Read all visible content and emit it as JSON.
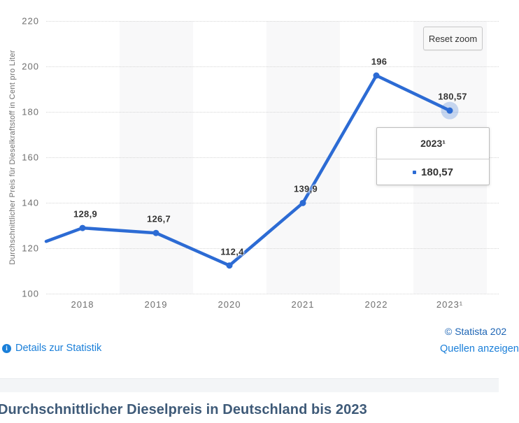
{
  "chart": {
    "reset_zoom_label": "Reset zoom",
    "y_ticks": [
      220,
      200,
      180,
      160,
      140,
      120,
      100
    ],
    "tooltip": {
      "header": "2023¹",
      "value": "180,57"
    },
    "colors": {
      "line": "#2c6bd4",
      "halo": "rgba(44,107,212,0.25)",
      "band": "#f8f8f9",
      "grid": "#d6d6d6",
      "data_label": "#333333",
      "axis_text": "#6f6f6f",
      "link": "#1a7fd9",
      "copyright": "#1c64b4",
      "title": "#3e5a78"
    }
  },
  "chart_data": {
    "type": "line",
    "title": "",
    "categories": [
      "2018",
      "2019",
      "2020",
      "2021",
      "2022",
      "2023¹"
    ],
    "values": [
      128.9,
      126.7,
      112.4,
      139.9,
      196,
      180.57
    ],
    "value_labels": [
      "128,9",
      "126,7",
      "112,4",
      "139,9",
      "196",
      "180,57"
    ],
    "left_edge_clip_value": 123,
    "ylabel": "Durchschnittlicher Preis für Dieselkraftstoff in Cent pro Liter",
    "xlabel": "",
    "ylim": [
      100,
      220
    ],
    "grid": "horizontal-dotted",
    "legend": "none",
    "zoomed": true,
    "highlighted_point": {
      "category": "2023¹",
      "value": 180.57,
      "label": "180,57"
    }
  },
  "footer": {
    "details_label": "Details zur Statistik",
    "copyright": "© Statista 202",
    "sources_label": "Quellen anzeigen"
  },
  "section_title": "Durchschnittlicher Dieselpreis in Deutschland bis 2023"
}
